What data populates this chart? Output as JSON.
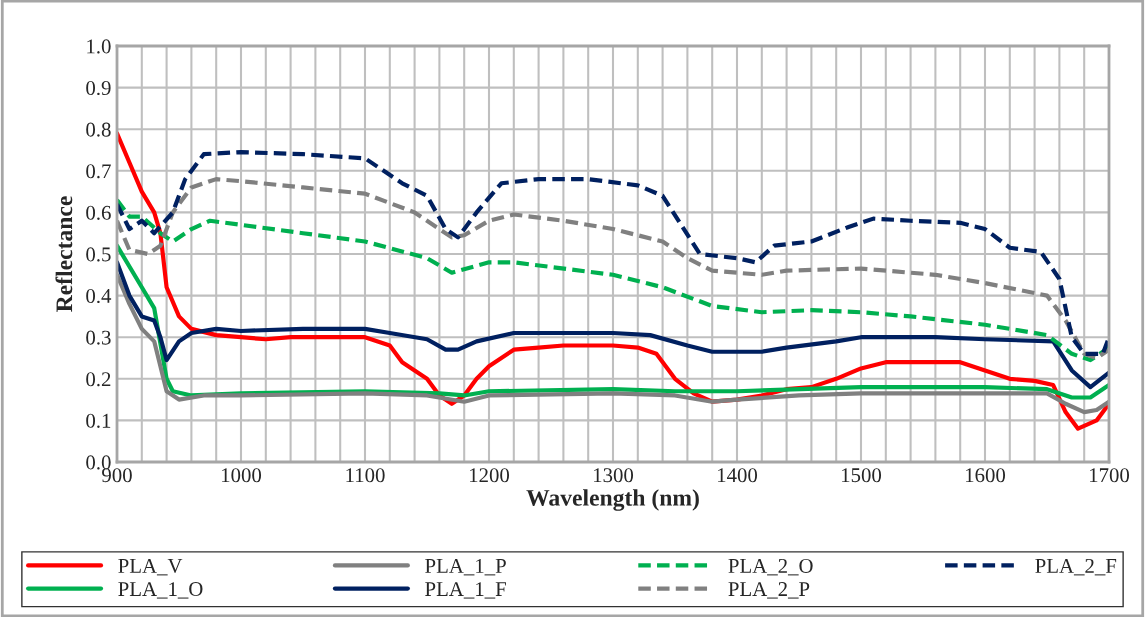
{
  "chart_data": {
    "type": "line",
    "xlabel": "Wavelength (nm)",
    "ylabel": "Reflectance",
    "xlim": [
      900,
      1700
    ],
    "ylim": [
      0,
      1
    ],
    "xticks": [
      900,
      {
        "value": 920,
        "label": null
      },
      {
        "value": 940,
        "label": null
      },
      {
        "value": 960,
        "label": null
      },
      {
        "value": 980,
        "label": null
      },
      1000,
      {
        "value": 1020,
        "label": null
      },
      {
        "value": 1040,
        "label": null
      },
      {
        "value": 1060,
        "label": null
      },
      {
        "value": 1080,
        "label": null
      },
      1100,
      {
        "value": 1120,
        "label": null
      },
      {
        "value": 1140,
        "label": null
      },
      {
        "value": 1160,
        "label": null
      },
      {
        "value": 1180,
        "label": null
      },
      1200,
      {
        "value": 1220,
        "label": null
      },
      {
        "value": 1240,
        "label": null
      },
      {
        "value": 1260,
        "label": null
      },
      {
        "value": 1280,
        "label": null
      },
      1300,
      {
        "value": 1320,
        "label": null
      },
      {
        "value": 1340,
        "label": null
      },
      {
        "value": 1360,
        "label": null
      },
      {
        "value": 1380,
        "label": null
      },
      1400,
      {
        "value": 1420,
        "label": null
      },
      {
        "value": 1440,
        "label": null
      },
      {
        "value": 1460,
        "label": null
      },
      {
        "value": 1480,
        "label": null
      },
      1500,
      {
        "value": 1520,
        "label": null
      },
      {
        "value": 1540,
        "label": null
      },
      {
        "value": 1560,
        "label": null
      },
      {
        "value": 1580,
        "label": null
      },
      1600,
      {
        "value": 1620,
        "label": null
      },
      {
        "value": 1640,
        "label": null
      },
      {
        "value": 1660,
        "label": null
      },
      {
        "value": 1680,
        "label": null
      },
      1700
    ],
    "yticks": [
      {
        "value": 0,
        "label": "0.0"
      },
      0.1,
      0.2,
      0.3,
      0.4,
      0.5,
      0.6,
      0.7,
      0.8,
      0.9,
      {
        "value": 1,
        "label": "1.0"
      }
    ],
    "grid": true,
    "legend": "bottom",
    "marker": "none",
    "series": [
      {
        "name": "PLA_V",
        "color": "#ff0000",
        "line_style": "solid",
        "x": [
          900,
          910,
          920,
          930,
          935,
          940,
          950,
          960,
          980,
          1000,
          1020,
          1040,
          1060,
          1080,
          1100,
          1120,
          1130,
          1140,
          1150,
          1160,
          1170,
          1180,
          1190,
          1200,
          1220,
          1240,
          1260,
          1280,
          1300,
          1320,
          1335,
          1350,
          1365,
          1380,
          1400,
          1420,
          1440,
          1460,
          1480,
          1500,
          1520,
          1540,
          1560,
          1580,
          1600,
          1620,
          1640,
          1655,
          1665,
          1675,
          1690,
          1700
        ],
        "values": [
          0.79,
          0.72,
          0.65,
          0.6,
          0.55,
          0.42,
          0.35,
          0.32,
          0.305,
          0.3,
          0.295,
          0.3,
          0.3,
          0.3,
          0.3,
          0.28,
          0.24,
          0.22,
          0.2,
          0.16,
          0.14,
          0.16,
          0.2,
          0.23,
          0.27,
          0.275,
          0.28,
          0.28,
          0.28,
          0.275,
          0.26,
          0.2,
          0.165,
          0.145,
          0.15,
          0.16,
          0.175,
          0.18,
          0.2,
          0.225,
          0.24,
          0.24,
          0.24,
          0.24,
          0.22,
          0.2,
          0.195,
          0.185,
          0.12,
          0.08,
          0.1,
          0.14
        ]
      },
      {
        "name": "PLA_1_O",
        "color": "#00b050",
        "line_style": "solid",
        "x": [
          900,
          920,
          930,
          940,
          945,
          960,
          1000,
          1100,
          1160,
          1180,
          1200,
          1300,
          1350,
          1400,
          1500,
          1600,
          1650,
          1670,
          1685,
          1700
        ],
        "values": [
          0.52,
          0.42,
          0.37,
          0.2,
          0.17,
          0.16,
          0.165,
          0.17,
          0.165,
          0.16,
          0.17,
          0.175,
          0.17,
          0.17,
          0.18,
          0.18,
          0.175,
          0.155,
          0.155,
          0.185
        ]
      },
      {
        "name": "PLA_1_P",
        "color": "#808080",
        "line_style": "solid",
        "x": [
          900,
          910,
          920,
          930,
          940,
          950,
          970,
          1000,
          1100,
          1150,
          1180,
          1200,
          1300,
          1350,
          1380,
          1400,
          1450,
          1500,
          1600,
          1650,
          1665,
          1680,
          1690,
          1700
        ],
        "values": [
          0.45,
          0.38,
          0.32,
          0.29,
          0.17,
          0.15,
          0.16,
          0.16,
          0.165,
          0.16,
          0.145,
          0.16,
          0.165,
          0.16,
          0.145,
          0.15,
          0.16,
          0.165,
          0.165,
          0.165,
          0.14,
          0.12,
          0.125,
          0.145
        ]
      },
      {
        "name": "PLA_1_F",
        "color": "#002060",
        "line_style": "solid",
        "x": [
          900,
          910,
          920,
          930,
          935,
          940,
          950,
          960,
          980,
          1000,
          1050,
          1100,
          1120,
          1150,
          1165,
          1175,
          1190,
          1220,
          1300,
          1330,
          1360,
          1380,
          1420,
          1440,
          1480,
          1500,
          1560,
          1600,
          1655,
          1670,
          1685,
          1700
        ],
        "values": [
          0.48,
          0.4,
          0.35,
          0.34,
          0.3,
          0.245,
          0.29,
          0.31,
          0.32,
          0.315,
          0.32,
          0.32,
          0.31,
          0.295,
          0.27,
          0.27,
          0.29,
          0.31,
          0.31,
          0.305,
          0.28,
          0.265,
          0.265,
          0.275,
          0.29,
          0.3,
          0.3,
          0.295,
          0.29,
          0.22,
          0.18,
          0.215
        ]
      },
      {
        "name": "PLA_2_O",
        "color": "#00b050",
        "line_style": "dashed",
        "x": [
          900,
          910,
          920,
          935,
          945,
          960,
          975,
          1000,
          1050,
          1100,
          1150,
          1170,
          1200,
          1220,
          1300,
          1340,
          1380,
          1420,
          1460,
          1500,
          1540,
          1600,
          1650,
          1670,
          1685,
          1700
        ],
        "values": [
          0.63,
          0.59,
          0.59,
          0.55,
          0.53,
          0.56,
          0.58,
          0.57,
          0.55,
          0.53,
          0.49,
          0.455,
          0.48,
          0.48,
          0.45,
          0.42,
          0.375,
          0.36,
          0.365,
          0.36,
          0.35,
          0.33,
          0.305,
          0.26,
          0.245,
          0.275
        ]
      },
      {
        "name": "PLA_2_P",
        "color": "#808080",
        "line_style": "dashed",
        "x": [
          900,
          910,
          925,
          935,
          945,
          960,
          980,
          1000,
          1050,
          1100,
          1140,
          1170,
          1180,
          1200,
          1220,
          1260,
          1300,
          1340,
          1360,
          1380,
          1420,
          1440,
          1500,
          1560,
          1600,
          1650,
          1665,
          1680,
          1690,
          1700
        ],
        "values": [
          0.58,
          0.51,
          0.5,
          0.52,
          0.6,
          0.66,
          0.68,
          0.675,
          0.66,
          0.645,
          0.6,
          0.54,
          0.545,
          0.58,
          0.595,
          0.58,
          0.56,
          0.53,
          0.49,
          0.46,
          0.45,
          0.46,
          0.465,
          0.45,
          0.43,
          0.4,
          0.34,
          0.26,
          0.25,
          0.27
        ]
      },
      {
        "name": "PLA_2_F",
        "color": "#002060",
        "line_style": "dashed",
        "x": [
          900,
          910,
          920,
          930,
          945,
          955,
          970,
          1000,
          1050,
          1100,
          1130,
          1150,
          1165,
          1175,
          1190,
          1210,
          1240,
          1280,
          1320,
          1340,
          1370,
          1400,
          1415,
          1430,
          1460,
          1490,
          1510,
          1540,
          1580,
          1600,
          1620,
          1645,
          1660,
          1670,
          1680,
          1695,
          1700
        ],
        "values": [
          0.62,
          0.56,
          0.58,
          0.55,
          0.6,
          0.68,
          0.74,
          0.745,
          0.74,
          0.73,
          0.67,
          0.64,
          0.56,
          0.54,
          0.6,
          0.67,
          0.68,
          0.68,
          0.665,
          0.64,
          0.5,
          0.49,
          0.48,
          0.52,
          0.53,
          0.565,
          0.585,
          0.58,
          0.575,
          0.56,
          0.515,
          0.505,
          0.44,
          0.3,
          0.26,
          0.26,
          0.3
        ]
      }
    ]
  }
}
